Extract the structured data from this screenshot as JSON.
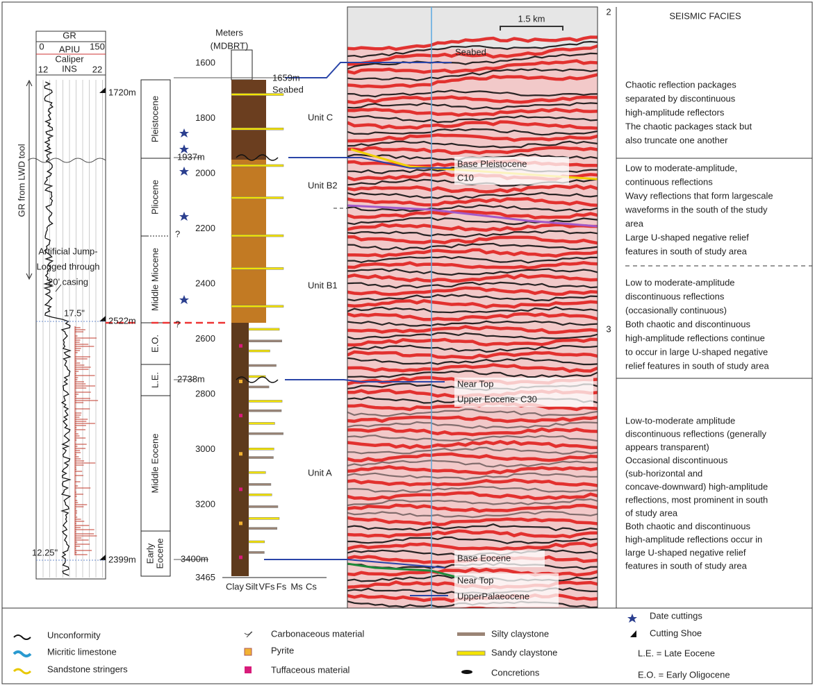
{
  "gr_log": {
    "title": "GR",
    "min": "0",
    "unit": "APIU",
    "max": "150",
    "caliper": "Caliper",
    "caliper_min": "12",
    "caliper_unit": "INS",
    "caliper_max": "22",
    "tool_label": "GR from LWD tool",
    "shoes": [
      "1720m",
      "2522m",
      "2399m"
    ],
    "casing_sizes": [
      "17.5\"",
      "12.25\""
    ],
    "jump_note": [
      "Artificial Jump-",
      "Logged through",
      "20’ casing"
    ]
  },
  "stratigraphy": {
    "units": [
      {
        "lines": [
          "Pleistocene"
        ]
      },
      {
        "lines": [
          "Pliocene"
        ]
      },
      {
        "lines": [
          "Middle Miocene"
        ]
      },
      {
        "lines": [
          "E.O."
        ]
      },
      {
        "lines": [
          "L.E."
        ]
      },
      {
        "lines": [
          "Middle Eocene"
        ]
      },
      {
        "lines": [
          "Early",
          "Eocene"
        ]
      }
    ],
    "uncertain": [
      "?",
      "?"
    ]
  },
  "depth": {
    "title": [
      "Meters",
      "(MDBRT)"
    ],
    "ticks": [
      1600,
      1800,
      2000,
      2200,
      2400,
      2600,
      2800,
      3000,
      3200,
      3465
    ],
    "markers": [
      {
        "depth": "1659m",
        "label": "Seabed"
      },
      {
        "depth": "1937m"
      },
      {
        "depth": "2738m"
      },
      {
        "depth": "3400m"
      }
    ],
    "grain_sizes": [
      "Clay",
      "Silt",
      "VFs",
      "Fs",
      "Ms",
      "Cs"
    ]
  },
  "seismic": {
    "scale": "1.5 km",
    "twt_ticks": [
      "2",
      "3"
    ],
    "horizons": [
      [
        "Seabed"
      ],
      [
        "Base Pleistocene",
        "C10"
      ],
      [
        "Near Top",
        "Upper Eocene- C30"
      ],
      [
        "Base Eocene"
      ],
      [
        "Near Top",
        "UpperPalaeocene"
      ]
    ],
    "units": [
      "Unit C",
      "Unit B2",
      "Unit B1",
      "Unit A"
    ]
  },
  "facies": {
    "title": "SEISMIC FACIES",
    "descriptions": [
      [
        "Chaotic reflection packages",
        "separated by discontinuous",
        "high-amplitude reflectors",
        "The chaotic packages stack but",
        "also truncate one another"
      ],
      [
        "Low to moderate-amplitude,",
        "continuous reflections",
        "Wavy reflections that form largescale",
        "waveforms in the south of the study",
        "area",
        "Large U-shaped negative relief",
        "features in south of study area"
      ],
      [
        "Low to moderate-amplitude",
        "discontinuous reflections",
        "(occasionally continuous)",
        "Both chaotic and discontinuous",
        "high-amplitude reflections continue",
        "to occur in large U-shaped negative",
        "relief features in south of study area"
      ],
      [
        "Low-to-moderate amplitude",
        "discontinuous reflections (generally",
        "appears transparent)",
        "Occasional discontinuous",
        "(sub-horizontal and",
        "concave-downward) high-amplitude",
        "reflections, most prominent in south",
        "of study area",
        "Both chaotic and discontinuous",
        "high-amplitude reflections occur in",
        "large U-shaped negative relief",
        "features in south of study area"
      ]
    ]
  },
  "legend": {
    "items": [
      "Unconformity",
      "Micritic limestone",
      "Sandstone stringers",
      "Carbonaceous material",
      "Pyrite",
      "Tuffaceous material",
      "Silty claystone",
      "Sandy claystone",
      "Concretions",
      "Date cuttings",
      "Cutting Shoe",
      "L.E. = Late Eocene",
      "E.O. = Early Oligocene"
    ]
  }
}
